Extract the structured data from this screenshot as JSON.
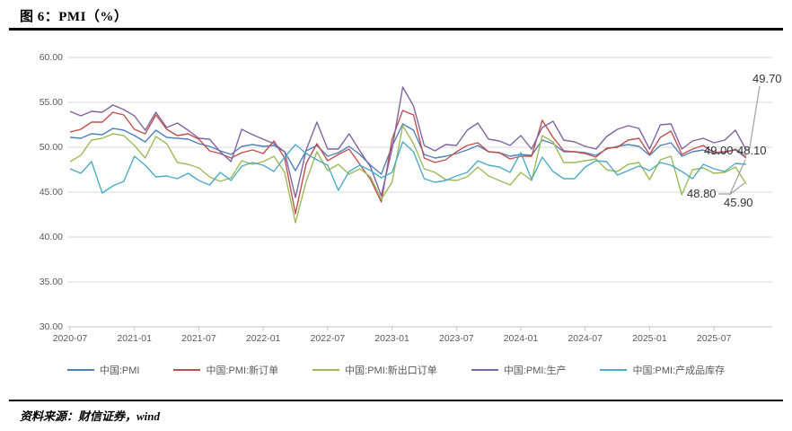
{
  "header": {
    "title": "图 6：PMI（%）"
  },
  "source": {
    "text": "资料来源：财信证券，wind"
  },
  "chart_data": {
    "type": "line",
    "title": "图 6：PMI（%）",
    "ylabel": "",
    "xlabel": "",
    "ylim": [
      30,
      60
    ],
    "grid": "horizontal",
    "legend_position": "bottom",
    "y_ticks": [
      "60.00",
      "55.00",
      "50.00",
      "45.00",
      "40.00",
      "35.00",
      "30.00"
    ],
    "y_tick_values": [
      60,
      55,
      50,
      45,
      40,
      35,
      30
    ],
    "x_tick_labels": [
      "2020-07",
      "2021-01",
      "2021-07",
      "2022-01",
      "2022-07",
      "2023-01",
      "2023-07",
      "2024-01",
      "2024-07",
      "2025-01",
      "2025-07"
    ],
    "x_tick_every": 6,
    "x": [
      "2020-07",
      "2020-08",
      "2020-09",
      "2020-10",
      "2020-11",
      "2020-12",
      "2021-01",
      "2021-02",
      "2021-03",
      "2021-04",
      "2021-05",
      "2021-06",
      "2021-07",
      "2021-08",
      "2021-09",
      "2021-10",
      "2021-11",
      "2021-12",
      "2022-01",
      "2022-02",
      "2022-03",
      "2022-04",
      "2022-05",
      "2022-06",
      "2022-07",
      "2022-08",
      "2022-09",
      "2022-10",
      "2022-11",
      "2022-12",
      "2023-01",
      "2023-02",
      "2023-03",
      "2023-04",
      "2023-05",
      "2023-06",
      "2023-07",
      "2023-08",
      "2023-09",
      "2023-10",
      "2023-11",
      "2023-12",
      "2024-01",
      "2024-02",
      "2024-03",
      "2024-04",
      "2024-05",
      "2024-06",
      "2024-07",
      "2024-08",
      "2024-09",
      "2024-10",
      "2024-11",
      "2024-12",
      "2025-01",
      "2025-02",
      "2025-03",
      "2025-04",
      "2025-05",
      "2025-06",
      "2025-07",
      "2025-08",
      "2025-09",
      "2025-10"
    ],
    "series": [
      {
        "name": "中国:PMI",
        "color": "#4F81BD",
        "values": [
          51.1,
          51.0,
          51.5,
          51.4,
          52.1,
          51.9,
          51.3,
          50.6,
          51.9,
          51.1,
          51.0,
          50.9,
          50.4,
          50.1,
          49.6,
          49.2,
          50.1,
          50.3,
          50.1,
          50.2,
          49.5,
          47.4,
          49.6,
          50.2,
          49.0,
          49.4,
          50.1,
          49.2,
          48.0,
          47.0,
          50.1,
          52.6,
          51.9,
          49.2,
          48.8,
          49.0,
          49.3,
          49.7,
          50.2,
          49.5,
          49.4,
          49.0,
          49.2,
          49.1,
          50.8,
          50.4,
          49.5,
          49.5,
          49.4,
          49.1,
          49.8,
          50.1,
          50.3,
          50.1,
          49.1,
          50.2,
          50.5,
          49.0,
          49.5,
          49.7,
          49.3,
          49.4,
          49.8,
          49.0
        ]
      },
      {
        "name": "中国:PMI:新订单",
        "color": "#C0504D",
        "values": [
          51.7,
          52.0,
          52.8,
          52.8,
          53.9,
          53.6,
          52.0,
          51.5,
          53.6,
          52.0,
          51.3,
          51.5,
          50.9,
          49.6,
          49.3,
          48.8,
          49.4,
          49.7,
          49.3,
          50.7,
          48.8,
          42.6,
          48.2,
          50.4,
          48.5,
          49.2,
          49.8,
          48.1,
          46.4,
          43.9,
          50.9,
          54.1,
          53.6,
          48.8,
          48.3,
          48.6,
          49.5,
          50.2,
          50.5,
          49.5,
          49.4,
          48.7,
          49.0,
          49.0,
          53.0,
          51.1,
          49.6,
          49.5,
          49.3,
          48.9,
          49.9,
          50.0,
          50.8,
          51.0,
          49.2,
          51.1,
          51.8,
          49.2,
          49.8,
          50.2,
          49.4,
          49.5,
          49.7,
          48.8
        ]
      },
      {
        "name": "中国:PMI:新出口订单",
        "color": "#9BBB59",
        "values": [
          48.4,
          49.1,
          50.8,
          51.0,
          51.5,
          51.3,
          50.2,
          48.8,
          51.2,
          50.4,
          48.3,
          48.1,
          47.7,
          46.7,
          46.2,
          46.6,
          48.5,
          48.1,
          48.4,
          49.0,
          47.2,
          41.6,
          46.2,
          49.5,
          47.4,
          48.1,
          47.0,
          47.6,
          46.7,
          44.2,
          46.1,
          52.4,
          50.4,
          47.6,
          47.2,
          46.4,
          46.3,
          46.7,
          47.8,
          46.8,
          46.3,
          45.8,
          47.2,
          46.3,
          51.3,
          50.6,
          48.3,
          48.3,
          48.5,
          48.7,
          47.5,
          47.3,
          48.1,
          48.3,
          46.4,
          48.6,
          49.0,
          44.7,
          47.5,
          47.7,
          47.1,
          47.2,
          47.8,
          45.9
        ]
      },
      {
        "name": "中国:PMI:生产",
        "color": "#8064A2",
        "values": [
          54.0,
          53.5,
          54.0,
          53.9,
          54.7,
          54.2,
          53.5,
          51.9,
          53.9,
          52.2,
          52.7,
          51.9,
          51.0,
          50.9,
          49.5,
          48.4,
          52.0,
          51.4,
          50.9,
          50.4,
          49.5,
          44.4,
          49.7,
          52.8,
          49.8,
          49.8,
          51.5,
          49.6,
          47.8,
          44.6,
          49.8,
          56.7,
          54.6,
          50.2,
          49.6,
          50.3,
          50.2,
          51.9,
          52.7,
          50.9,
          50.7,
          50.2,
          51.3,
          49.8,
          52.2,
          52.9,
          50.8,
          50.6,
          50.1,
          49.8,
          51.2,
          52.0,
          52.4,
          52.1,
          49.8,
          52.5,
          52.6,
          49.8,
          50.7,
          51.0,
          50.5,
          50.8,
          51.9,
          49.7
        ]
      },
      {
        "name": "中国:PMI:产成品库存",
        "color": "#4BACC6",
        "values": [
          47.6,
          47.1,
          48.4,
          44.9,
          45.7,
          46.2,
          49.0,
          48.0,
          46.7,
          46.8,
          46.5,
          47.1,
          46.3,
          45.8,
          47.2,
          46.3,
          47.9,
          48.3,
          48.0,
          47.3,
          48.9,
          50.3,
          49.3,
          48.6,
          48.0,
          45.2,
          47.3,
          48.0,
          47.4,
          46.6,
          47.2,
          50.6,
          49.5,
          46.5,
          46.1,
          46.3,
          46.8,
          47.2,
          48.5,
          48.0,
          47.8,
          47.2,
          49.4,
          46.4,
          48.9,
          47.3,
          46.5,
          46.5,
          47.8,
          48.5,
          48.4,
          46.9,
          47.4,
          47.9,
          47.4,
          48.3,
          48.0,
          47.3,
          46.5,
          48.1,
          47.6,
          47.3,
          48.2,
          48.1
        ]
      }
    ],
    "end_labels": [
      {
        "series": "中国:PMI:生产",
        "text": "49.70"
      },
      {
        "series": "中国:PMI",
        "text": "49.00"
      },
      {
        "series": "中国:PMI:产成品库存",
        "text": "48.10"
      },
      {
        "series": "中国:PMI:新订单",
        "text": "48.80"
      },
      {
        "series": "中国:PMI:新出口订单",
        "text": "45.90"
      }
    ],
    "colors": {
      "gridline": "#D9D9D9",
      "axis": "#C6C6C6",
      "axis_text": "#595959",
      "leader_line": "#A0A0A0",
      "label_text": "#333333"
    }
  }
}
